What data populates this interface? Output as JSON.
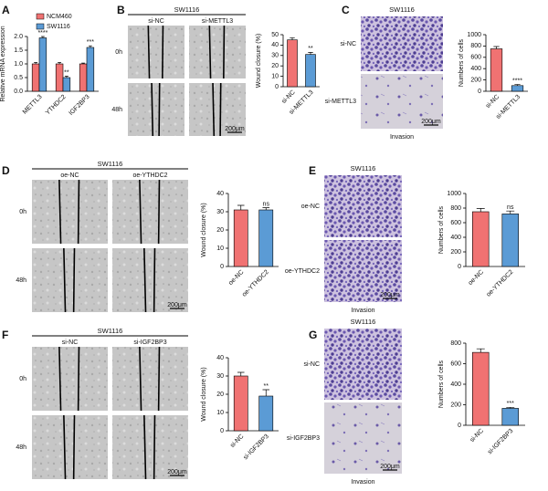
{
  "chart_data": [
    {
      "type": "bar",
      "y_label": "Relative mRNA expression",
      "categories": [
        "METTL3",
        "YTHDC2",
        "IGF2BP3"
      ],
      "series": [
        {
          "name": "NCM460",
          "color": "#f07272",
          "values": [
            1.0,
            1.0,
            1.0
          ],
          "errors": [
            0.05,
            0.05,
            0.03
          ]
        },
        {
          "name": "SW1116",
          "color": "#5b9bd5",
          "values": [
            1.95,
            0.5,
            1.6
          ],
          "errors": [
            0.05,
            0.05,
            0.06
          ]
        }
      ],
      "ylim": [
        0,
        2
      ],
      "yticks": [
        {
          "value": 0,
          "label": "0.0"
        },
        0.5,
        {
          "value": 1,
          "label": "1.0"
        },
        1.5,
        {
          "value": 2,
          "label": "2.0"
        }
      ],
      "annotations": [
        {
          "text": "****",
          "category": "METTL3",
          "series": "SW1116"
        },
        {
          "text": "**",
          "category": "YTHDC2",
          "series": "SW1116"
        },
        {
          "text": "***",
          "category": "IGF2BP3",
          "series": "SW1116"
        }
      ],
      "legend": "top-left"
    },
    {
      "type": "bar",
      "y_label": "Wound closure (%)",
      "categories": [
        "si-NC",
        "si-METTL3"
      ],
      "values": [
        45,
        31
      ],
      "errors": [
        2,
        2
      ],
      "colors": [
        "#f07272",
        "#5b9bd5"
      ],
      "ylim": [
        0,
        50
      ],
      "yticks": [
        0,
        10,
        20,
        30,
        40,
        50
      ],
      "annotations": [
        {
          "text": "**",
          "category": "si-METTL3"
        }
      ]
    },
    {
      "type": "bar",
      "y_label": "Numbers of cells",
      "categories": [
        "si-NC",
        "si-METTL3"
      ],
      "values": [
        750,
        100
      ],
      "errors": [
        40,
        20
      ],
      "colors": [
        "#f07272",
        "#5b9bd5"
      ],
      "ylim": [
        0,
        1000
      ],
      "yticks": [
        0,
        200,
        400,
        600,
        800,
        1000
      ],
      "annotations": [
        {
          "text": "****",
          "category": "si-METTL3"
        }
      ]
    },
    {
      "type": "bar",
      "y_label": "Wound closure (%)",
      "categories": [
        "oe-NC",
        "oe-YTHDC2"
      ],
      "values": [
        31,
        31
      ],
      "errors": [
        2.5,
        1.2
      ],
      "colors": [
        "#f07272",
        "#5b9bd5"
      ],
      "ylim": [
        0,
        40
      ],
      "yticks": [
        0,
        10,
        20,
        30,
        40
      ],
      "annotations": [
        {
          "text": "ns",
          "category": "oe-YTHDC2"
        }
      ]
    },
    {
      "type": "bar",
      "y_label": "Numbers of cells",
      "categories": [
        "oe-NC",
        "oe-YTHDC2"
      ],
      "values": [
        750,
        720
      ],
      "errors": [
        45,
        40
      ],
      "colors": [
        "#f07272",
        "#5b9bd5"
      ],
      "ylim": [
        0,
        1000
      ],
      "yticks": [
        0,
        200,
        400,
        600,
        800,
        1000
      ],
      "annotations": [
        {
          "text": "ns",
          "category": "oe-YTHDC2"
        }
      ]
    },
    {
      "type": "bar",
      "y_label": "Wound closure (%)",
      "categories": [
        "si-NC",
        "si-IGF2BP3"
      ],
      "values": [
        30,
        19
      ],
      "errors": [
        2,
        3.5
      ],
      "colors": [
        "#f07272",
        "#5b9bd5"
      ],
      "ylim": [
        0,
        40
      ],
      "yticks": [
        0,
        10,
        20,
        30,
        40
      ],
      "annotations": [
        {
          "text": "**",
          "category": "si-IGF2BP3"
        }
      ]
    },
    {
      "type": "bar",
      "y_label": "Numbers of cells",
      "categories": [
        "si-NC",
        "si-IGF2BP3"
      ],
      "values": [
        710,
        165
      ],
      "errors": [
        35,
        10
      ],
      "colors": [
        "#f07272",
        "#5b9bd5"
      ],
      "ylim": [
        0,
        800
      ],
      "yticks": [
        0,
        200,
        400,
        600,
        800
      ],
      "annotations": [
        {
          "text": "***",
          "category": "si-IGF2BP3"
        }
      ]
    }
  ],
  "panels": [
    {
      "letter": "A"
    },
    {
      "letter": "B",
      "cell_line": "SW1116",
      "conditions": [
        "si-NC",
        "si-METTL3"
      ],
      "times": [
        "0h",
        "48h"
      ],
      "scale": "200μm"
    },
    {
      "letter": "C",
      "cell_line": "SW1116",
      "conditions": [
        "si-NC",
        "si-METTL3"
      ],
      "assay": "Invasion",
      "scale": "200μm"
    },
    {
      "letter": "D",
      "cell_line": "SW1116",
      "conditions": [
        "oe-NC",
        "oe-YTHDC2"
      ],
      "times": [
        "0h",
        "48h"
      ],
      "scale": "200μm"
    },
    {
      "letter": "E",
      "cell_line": "SW1116",
      "conditions": [
        "oe-NC",
        "oe-YTHDC2"
      ],
      "assay": "Invasion",
      "scale": "200μm"
    },
    {
      "letter": "F",
      "cell_line": "SW1116",
      "conditions": [
        "si-NC",
        "si-IGF2BP3"
      ],
      "times": [
        "0h",
        "48h"
      ],
      "scale": "200μm"
    },
    {
      "letter": "G",
      "cell_line": "SW1116",
      "conditions": [
        "si-NC",
        "si-IGF2BP3"
      ],
      "assay": "Invasion",
      "scale": "200μm"
    }
  ]
}
